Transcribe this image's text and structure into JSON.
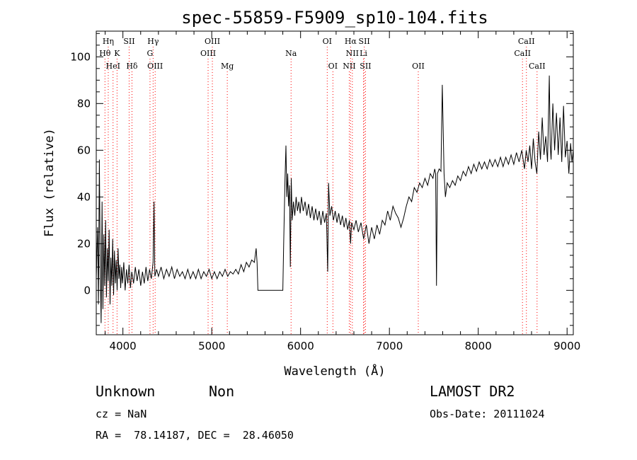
{
  "chart_data": {
    "type": "line",
    "title": "spec-55859-F5909_sp10-104.fits",
    "xlabel": "Wavelength (Å)",
    "ylabel": "Flux (relative)",
    "xlim": [
      3700,
      9070
    ],
    "ylim": [
      -19,
      111
    ],
    "x_ticks": [
      4000,
      5000,
      6000,
      7000,
      8000,
      9000
    ],
    "y_ticks": [
      0,
      20,
      40,
      60,
      80,
      100
    ],
    "grid": false,
    "series": [
      {
        "color": "#000000",
        "points": [
          [
            3700,
            5
          ],
          [
            3715,
            27
          ],
          [
            3725,
            -6
          ],
          [
            3735,
            56
          ],
          [
            3745,
            10
          ],
          [
            3755,
            -14
          ],
          [
            3765,
            38
          ],
          [
            3775,
            -8
          ],
          [
            3785,
            24
          ],
          [
            3795,
            2
          ],
          [
            3805,
            30
          ],
          [
            3815,
            -3
          ],
          [
            3825,
            18
          ],
          [
            3835,
            4
          ],
          [
            3845,
            26
          ],
          [
            3855,
            -6
          ],
          [
            3865,
            14
          ],
          [
            3875,
            2
          ],
          [
            3885,
            22
          ],
          [
            3895,
            -2
          ],
          [
            3905,
            17
          ],
          [
            3915,
            3
          ],
          [
            3925,
            13
          ],
          [
            3935,
            0
          ],
          [
            3945,
            18
          ],
          [
            3955,
            5
          ],
          [
            3965,
            11
          ],
          [
            3975,
            1
          ],
          [
            3985,
            10
          ],
          [
            3995,
            3
          ],
          [
            4010,
            12
          ],
          [
            4025,
            0
          ],
          [
            4040,
            9
          ],
          [
            4055,
            3
          ],
          [
            4070,
            11
          ],
          [
            4085,
            1
          ],
          [
            4100,
            8
          ],
          [
            4120,
            3
          ],
          [
            4140,
            10
          ],
          [
            4160,
            4
          ],
          [
            4180,
            9
          ],
          [
            4200,
            2
          ],
          [
            4220,
            8
          ],
          [
            4240,
            3
          ],
          [
            4260,
            10
          ],
          [
            4280,
            4
          ],
          [
            4300,
            9
          ],
          [
            4320,
            5
          ],
          [
            4340,
            12
          ],
          [
            4350,
            38
          ],
          [
            4360,
            6
          ],
          [
            4380,
            9
          ],
          [
            4400,
            6
          ],
          [
            4430,
            10
          ],
          [
            4460,
            5
          ],
          [
            4490,
            9
          ],
          [
            4520,
            6
          ],
          [
            4550,
            10
          ],
          [
            4580,
            5
          ],
          [
            4610,
            9
          ],
          [
            4640,
            6
          ],
          [
            4670,
            8
          ],
          [
            4700,
            5
          ],
          [
            4730,
            9
          ],
          [
            4760,
            5
          ],
          [
            4790,
            8
          ],
          [
            4820,
            5
          ],
          [
            4850,
            9
          ],
          [
            4880,
            5
          ],
          [
            4910,
            8
          ],
          [
            4940,
            6
          ],
          [
            4970,
            9
          ],
          [
            5000,
            5
          ],
          [
            5030,
            8
          ],
          [
            5060,
            5
          ],
          [
            5090,
            8
          ],
          [
            5120,
            6
          ],
          [
            5150,
            9
          ],
          [
            5180,
            6
          ],
          [
            5210,
            8
          ],
          [
            5240,
            7
          ],
          [
            5270,
            9
          ],
          [
            5300,
            7
          ],
          [
            5330,
            11
          ],
          [
            5360,
            8
          ],
          [
            5390,
            12
          ],
          [
            5420,
            10
          ],
          [
            5450,
            13
          ],
          [
            5480,
            12
          ],
          [
            5500,
            18
          ],
          [
            5510,
            12
          ],
          [
            5520,
            0
          ],
          [
            5800,
            0
          ],
          [
            5810,
            20
          ],
          [
            5825,
            48
          ],
          [
            5835,
            62
          ],
          [
            5845,
            40
          ],
          [
            5855,
            50
          ],
          [
            5865,
            36
          ],
          [
            5875,
            45
          ],
          [
            5885,
            10
          ],
          [
            5895,
            48
          ],
          [
            5905,
            30
          ],
          [
            5920,
            38
          ],
          [
            5935,
            32
          ],
          [
            5950,
            40
          ],
          [
            5965,
            34
          ],
          [
            5980,
            38
          ],
          [
            5995,
            33
          ],
          [
            6010,
            40
          ],
          [
            6030,
            34
          ],
          [
            6050,
            38
          ],
          [
            6070,
            32
          ],
          [
            6090,
            37
          ],
          [
            6110,
            31
          ],
          [
            6130,
            36
          ],
          [
            6150,
            30
          ],
          [
            6170,
            35
          ],
          [
            6190,
            30
          ],
          [
            6210,
            34
          ],
          [
            6230,
            28
          ],
          [
            6250,
            34
          ],
          [
            6270,
            29
          ],
          [
            6290,
            33
          ],
          [
            6305,
            8
          ],
          [
            6315,
            46
          ],
          [
            6330,
            32
          ],
          [
            6350,
            36
          ],
          [
            6370,
            30
          ],
          [
            6390,
            34
          ],
          [
            6410,
            29
          ],
          [
            6430,
            33
          ],
          [
            6450,
            28
          ],
          [
            6470,
            32
          ],
          [
            6490,
            27
          ],
          [
            6510,
            31
          ],
          [
            6530,
            26
          ],
          [
            6550,
            30
          ],
          [
            6563,
            20
          ],
          [
            6575,
            29
          ],
          [
            6600,
            26
          ],
          [
            6625,
            30
          ],
          [
            6650,
            25
          ],
          [
            6680,
            29
          ],
          [
            6710,
            22
          ],
          [
            6740,
            28
          ],
          [
            6770,
            20
          ],
          [
            6800,
            27
          ],
          [
            6830,
            22
          ],
          [
            6860,
            28
          ],
          [
            6890,
            24
          ],
          [
            6920,
            30
          ],
          [
            6950,
            28
          ],
          [
            6980,
            34
          ],
          [
            7010,
            30
          ],
          [
            7040,
            36
          ],
          [
            7070,
            33
          ],
          [
            7100,
            31
          ],
          [
            7130,
            27
          ],
          [
            7160,
            31
          ],
          [
            7190,
            36
          ],
          [
            7220,
            40
          ],
          [
            7250,
            38
          ],
          [
            7280,
            44
          ],
          [
            7310,
            42
          ],
          [
            7340,
            46
          ],
          [
            7370,
            44
          ],
          [
            7400,
            48
          ],
          [
            7430,
            45
          ],
          [
            7460,
            50
          ],
          [
            7490,
            48
          ],
          [
            7510,
            52
          ],
          [
            7520,
            50
          ],
          [
            7530,
            2
          ],
          [
            7540,
            50
          ],
          [
            7560,
            52
          ],
          [
            7580,
            51
          ],
          [
            7595,
            88
          ],
          [
            7605,
            70
          ],
          [
            7615,
            50
          ],
          [
            7630,
            40
          ],
          [
            7650,
            46
          ],
          [
            7680,
            44
          ],
          [
            7710,
            47
          ],
          [
            7740,
            45
          ],
          [
            7770,
            49
          ],
          [
            7800,
            47
          ],
          [
            7830,
            51
          ],
          [
            7860,
            49
          ],
          [
            7890,
            53
          ],
          [
            7920,
            50
          ],
          [
            7950,
            54
          ],
          [
            7980,
            51
          ],
          [
            8010,
            55
          ],
          [
            8040,
            52
          ],
          [
            8070,
            55
          ],
          [
            8100,
            52
          ],
          [
            8130,
            56
          ],
          [
            8160,
            53
          ],
          [
            8190,
            56
          ],
          [
            8220,
            53
          ],
          [
            8250,
            57
          ],
          [
            8280,
            53
          ],
          [
            8310,
            57
          ],
          [
            8340,
            54
          ],
          [
            8370,
            58
          ],
          [
            8400,
            54
          ],
          [
            8430,
            59
          ],
          [
            8460,
            55
          ],
          [
            8490,
            60
          ],
          [
            8520,
            52
          ],
          [
            8540,
            60
          ],
          [
            8560,
            55
          ],
          [
            8580,
            62
          ],
          [
            8600,
            52
          ],
          [
            8620,
            65
          ],
          [
            8640,
            55
          ],
          [
            8660,
            50
          ],
          [
            8680,
            68
          ],
          [
            8700,
            56
          ],
          [
            8720,
            74
          ],
          [
            8740,
            58
          ],
          [
            8760,
            66
          ],
          [
            8780,
            55
          ],
          [
            8800,
            92
          ],
          [
            8810,
            62
          ],
          [
            8820,
            56
          ],
          [
            8840,
            80
          ],
          [
            8860,
            60
          ],
          [
            8880,
            76
          ],
          [
            8900,
            58
          ],
          [
            8920,
            74
          ],
          [
            8940,
            55
          ],
          [
            8960,
            79
          ],
          [
            8980,
            57
          ],
          [
            9000,
            64
          ],
          [
            9020,
            50
          ],
          [
            9040,
            63
          ],
          [
            9055,
            55
          ],
          [
            9070,
            60
          ]
        ]
      }
    ],
    "spectral_lines": [
      {
        "label": "Hη",
        "wavelength": 3835,
        "row": 1
      },
      {
        "label": "Hθ",
        "wavelength": 3798,
        "row": 2
      },
      {
        "label": "HeI",
        "wavelength": 3889,
        "row": 3
      },
      {
        "label": "K",
        "wavelength": 3934,
        "row": 2
      },
      {
        "label": "SII",
        "wavelength": 4070,
        "row": 1
      },
      {
        "label": "Hδ",
        "wavelength": 4102,
        "row": 3
      },
      {
        "label": "Hγ",
        "wavelength": 4340,
        "row": 1
      },
      {
        "label": "G",
        "wavelength": 4305,
        "row": 2
      },
      {
        "label": "OIII",
        "wavelength": 4363,
        "row": 3
      },
      {
        "label": "OIII",
        "wavelength": 5007,
        "row": 1
      },
      {
        "label": "OIII",
        "wavelength": 4959,
        "row": 2
      },
      {
        "label": "Mg",
        "wavelength": 5175,
        "row": 3
      },
      {
        "label": "Na",
        "wavelength": 5893,
        "row": 2
      },
      {
        "label": "OI",
        "wavelength": 6300,
        "row": 1
      },
      {
        "label": "OI",
        "wavelength": 6364,
        "row": 3
      },
      {
        "label": "Hα",
        "wavelength": 6563,
        "row": 1
      },
      {
        "label": "SII",
        "wavelength": 6717,
        "row": 1
      },
      {
        "label": "NII",
        "wavelength": 6583,
        "row": 2
      },
      {
        "label": "Li",
        "wavelength": 6708,
        "row": 2
      },
      {
        "label": "NII",
        "wavelength": 6548,
        "row": 3
      },
      {
        "label": "SII",
        "wavelength": 6731,
        "row": 3
      },
      {
        "label": "OII",
        "wavelength": 7325,
        "row": 3
      },
      {
        "label": "CaII",
        "wavelength": 8542,
        "row": 1
      },
      {
        "label": "CaII",
        "wavelength": 8498,
        "row": 2
      },
      {
        "label": "CaII",
        "wavelength": 8662,
        "row": 3
      }
    ],
    "line_color": "#ff0000"
  },
  "info": {
    "object_class": "Unknown",
    "subclass": "Non",
    "survey": "LAMOST DR2",
    "redshift": "cz = NaN",
    "obs_date": "Obs-Date: 20111024",
    "coordinates": "RA =  78.14187, DEC =  28.46050"
  }
}
